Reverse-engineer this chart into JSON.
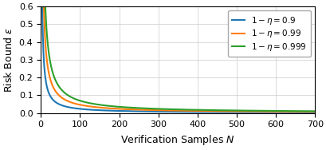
{
  "title": "",
  "xlabel": "Verification Samples $N$",
  "ylabel": "Risk Bound $\\varepsilon$",
  "xlim": [
    0,
    700
  ],
  "ylim": [
    0,
    0.6
  ],
  "xticks": [
    0,
    100,
    200,
    300,
    400,
    500,
    600,
    700
  ],
  "yticks": [
    0.0,
    0.1,
    0.2,
    0.3,
    0.4,
    0.5,
    0.6
  ],
  "legend_labels": [
    "$1 - \\eta = 0.9$",
    "$1 - \\eta = 0.99$",
    "$1 - \\eta = 0.999$"
  ],
  "line_colors": [
    "#1f77b4",
    "#ff7f0e",
    "#2ca02c"
  ],
  "confidence_levels": [
    0.9,
    0.99,
    0.999
  ],
  "N_max": 700,
  "N_min": 1,
  "figsize": [
    4.1,
    1.88
  ],
  "dpi": 100,
  "grid": true,
  "legend_loc": "upper right",
  "legend_fontsize": 7.5,
  "tick_fontsize": 8,
  "label_fontsize": 9
}
